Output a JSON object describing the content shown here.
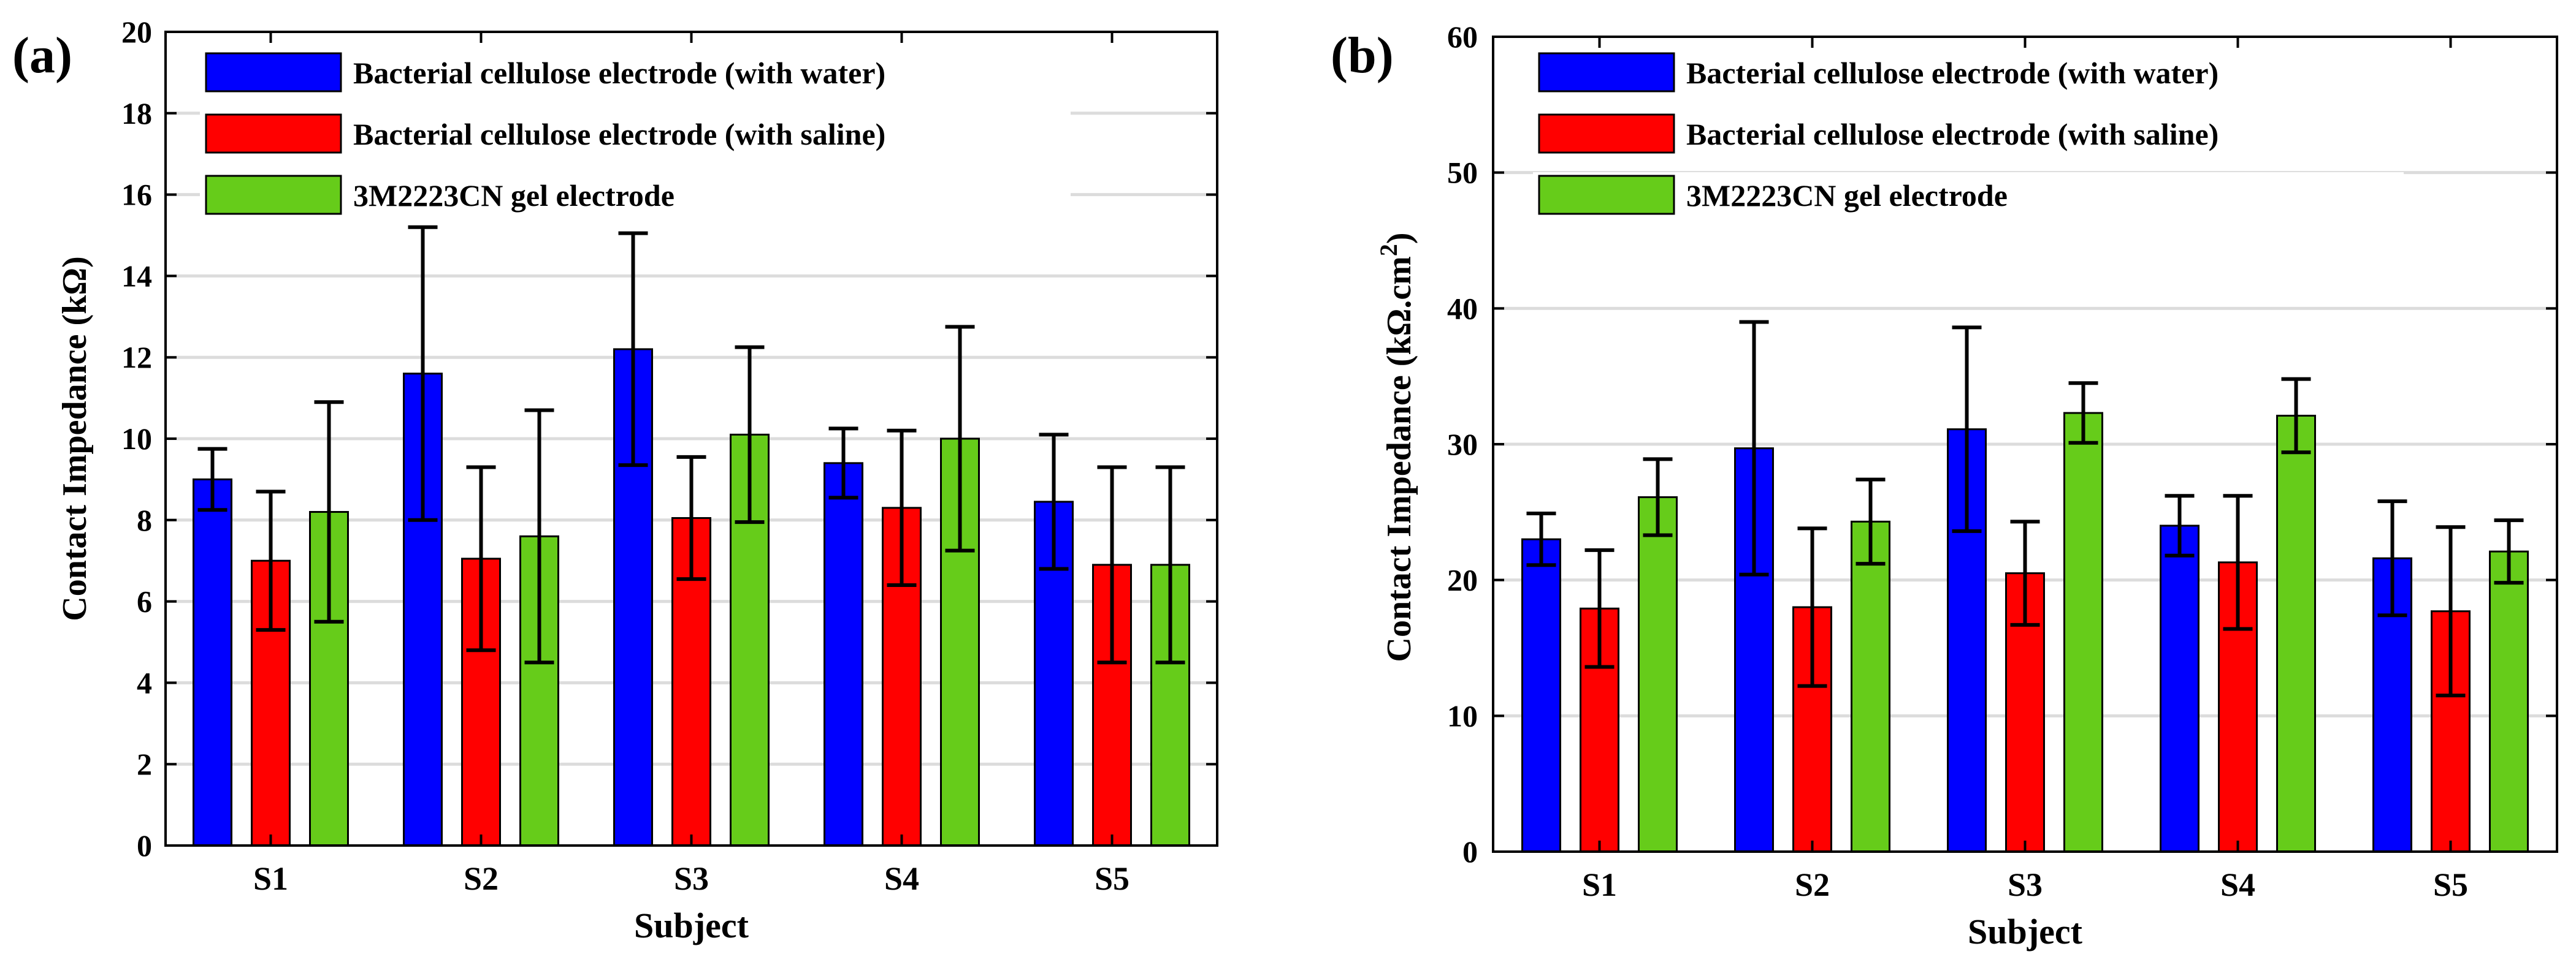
{
  "chart_data": [
    {
      "panel_label": "(a)",
      "type": "bar",
      "xlabel": "Subject",
      "ylabel": "Contact Impedance (kΩ)",
      "ylabel_superscript": "",
      "ylim": [
        0,
        20
      ],
      "yticks": [
        0,
        2,
        4,
        6,
        8,
        10,
        12,
        14,
        16,
        18,
        20
      ],
      "grid": true,
      "legend_position": "top-left",
      "categories": [
        "S1",
        "S2",
        "S3",
        "S4",
        "S5"
      ],
      "series": [
        {
          "name": "Bacterial cellulose electrode (with water)",
          "color": "#0000ff",
          "values": [
            9.0,
            11.6,
            12.2,
            9.4,
            8.45
          ],
          "errors": [
            0.75,
            3.6,
            2.85,
            0.85,
            1.65
          ]
        },
        {
          "name": "Bacterial cellulose electrode (with saline)",
          "color": "#ff0000",
          "values": [
            7.0,
            7.05,
            8.05,
            8.3,
            6.9
          ],
          "errors": [
            1.7,
            2.25,
            1.5,
            1.9,
            2.4
          ]
        },
        {
          "name": "3M2223CN gel electrode",
          "color": "#66cc1a",
          "values": [
            8.2,
            7.6,
            10.1,
            10.0,
            6.9
          ],
          "errors": [
            2.7,
            3.1,
            2.15,
            2.75,
            2.4
          ]
        }
      ]
    },
    {
      "panel_label": "(b)",
      "type": "bar",
      "xlabel": "Subject",
      "ylabel": "Contact Impedance (kΩ.cm",
      "ylabel_superscript": "2",
      "ylabel_suffix": ")",
      "ylim": [
        0,
        60
      ],
      "yticks": [
        0,
        10,
        20,
        30,
        40,
        50,
        60
      ],
      "grid": true,
      "legend_position": "top-left",
      "categories": [
        "S1",
        "S2",
        "S3",
        "S4",
        "S5"
      ],
      "series": [
        {
          "name": "Bacterial cellulose electrode (with water)",
          "color": "#0000ff",
          "values": [
            23.0,
            29.7,
            31.1,
            24.0,
            21.6
          ],
          "errors": [
            1.9,
            9.3,
            7.5,
            2.2,
            4.2
          ]
        },
        {
          "name": "Bacterial cellulose electrode (with saline)",
          "color": "#ff0000",
          "values": [
            17.9,
            18.0,
            20.5,
            21.3,
            17.7
          ],
          "errors": [
            4.3,
            5.8,
            3.8,
            4.9,
            6.2
          ]
        },
        {
          "name": "3M2223CN gel electrode",
          "color": "#66cc1a",
          "values": [
            26.1,
            24.3,
            32.3,
            32.1,
            22.1
          ],
          "errors": [
            2.8,
            3.1,
            2.2,
            2.7,
            2.3
          ]
        }
      ]
    }
  ]
}
